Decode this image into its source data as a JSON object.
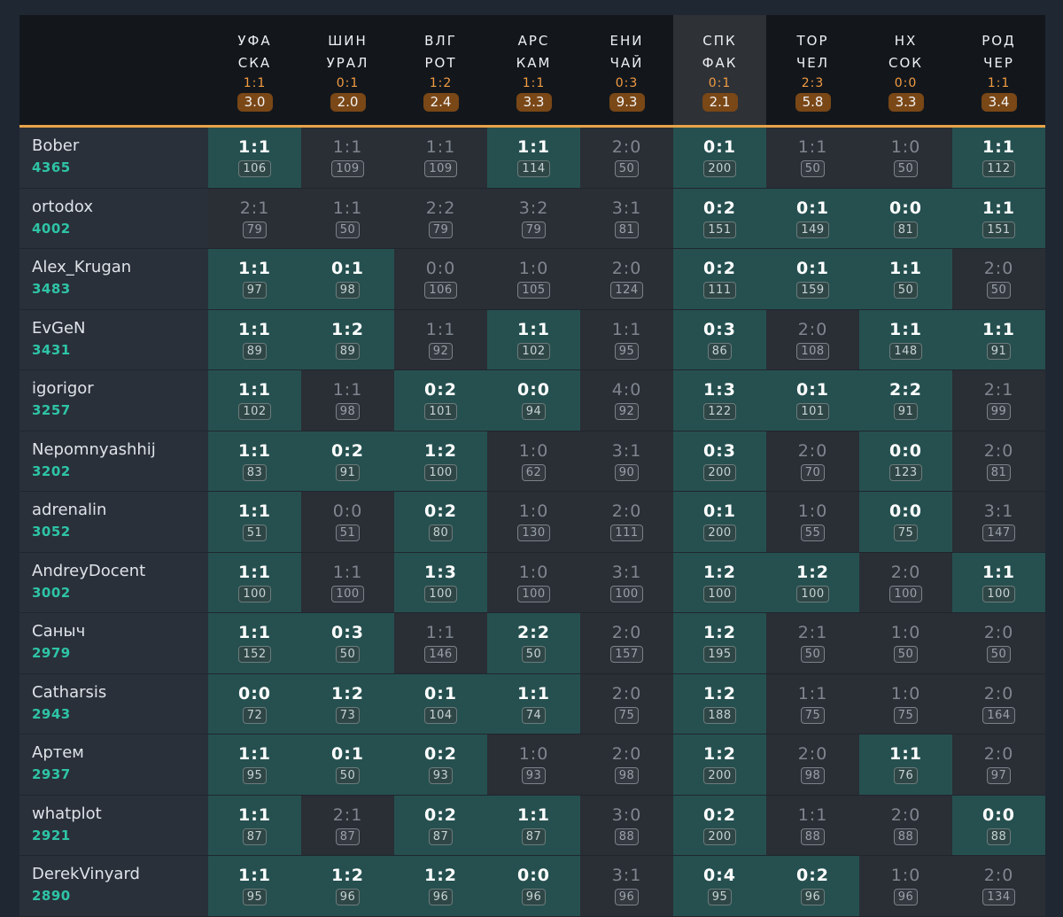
{
  "matches": [
    {
      "home": "УФА",
      "away": "СКА",
      "result": "1:1",
      "coef": "3.0",
      "active": false
    },
    {
      "home": "ШИН",
      "away": "УРАЛ",
      "result": "0:1",
      "coef": "2.0",
      "active": false
    },
    {
      "home": "ВЛГ",
      "away": "РОТ",
      "result": "1:2",
      "coef": "2.4",
      "active": false
    },
    {
      "home": "АРС",
      "away": "КАМ",
      "result": "1:1",
      "coef": "3.3",
      "active": false
    },
    {
      "home": "ЕНИ",
      "away": "ЧАЙ",
      "result": "0:3",
      "coef": "9.3",
      "active": false
    },
    {
      "home": "СПК",
      "away": "ФАК",
      "result": "0:1",
      "coef": "2.1",
      "active": true
    },
    {
      "home": "ТОР",
      "away": "ЧЕЛ",
      "result": "2:3",
      "coef": "5.8",
      "active": false
    },
    {
      "home": "НХ",
      "away": "СОК",
      "result": "0:0",
      "coef": "3.3",
      "active": false
    },
    {
      "home": "РОД",
      "away": "ЧЕР",
      "result": "1:1",
      "coef": "3.4",
      "active": false
    }
  ],
  "players": [
    {
      "name": "Bober",
      "score": "4365",
      "cells": [
        {
          "p": "1:1",
          "pts": "106",
          "hit": true
        },
        {
          "p": "1:1",
          "pts": "109",
          "hit": false
        },
        {
          "p": "1:1",
          "pts": "109",
          "hit": false
        },
        {
          "p": "1:1",
          "pts": "114",
          "hit": true
        },
        {
          "p": "2:0",
          "pts": "50",
          "hit": false
        },
        {
          "p": "0:1",
          "pts": "200",
          "hit": true
        },
        {
          "p": "1:1",
          "pts": "50",
          "hit": false
        },
        {
          "p": "1:0",
          "pts": "50",
          "hit": false
        },
        {
          "p": "1:1",
          "pts": "112",
          "hit": true
        }
      ]
    },
    {
      "name": "ortodox",
      "score": "4002",
      "cells": [
        {
          "p": "2:1",
          "pts": "79",
          "hit": false
        },
        {
          "p": "1:1",
          "pts": "50",
          "hit": false
        },
        {
          "p": "2:2",
          "pts": "79",
          "hit": false
        },
        {
          "p": "3:2",
          "pts": "79",
          "hit": false
        },
        {
          "p": "3:1",
          "pts": "81",
          "hit": false
        },
        {
          "p": "0:2",
          "pts": "151",
          "hit": true
        },
        {
          "p": "0:1",
          "pts": "149",
          "hit": true
        },
        {
          "p": "0:0",
          "pts": "81",
          "hit": true
        },
        {
          "p": "1:1",
          "pts": "151",
          "hit": true
        }
      ]
    },
    {
      "name": "Alex_Krugan",
      "score": "3483",
      "cells": [
        {
          "p": "1:1",
          "pts": "97",
          "hit": true
        },
        {
          "p": "0:1",
          "pts": "98",
          "hit": true
        },
        {
          "p": "0:0",
          "pts": "106",
          "hit": false
        },
        {
          "p": "1:0",
          "pts": "105",
          "hit": false
        },
        {
          "p": "2:0",
          "pts": "124",
          "hit": false
        },
        {
          "p": "0:2",
          "pts": "111",
          "hit": true
        },
        {
          "p": "0:1",
          "pts": "159",
          "hit": true
        },
        {
          "p": "1:1",
          "pts": "50",
          "hit": true
        },
        {
          "p": "2:0",
          "pts": "50",
          "hit": false
        }
      ]
    },
    {
      "name": "EvGeN",
      "score": "3431",
      "cells": [
        {
          "p": "1:1",
          "pts": "89",
          "hit": true
        },
        {
          "p": "1:2",
          "pts": "89",
          "hit": true
        },
        {
          "p": "1:1",
          "pts": "92",
          "hit": false
        },
        {
          "p": "1:1",
          "pts": "102",
          "hit": true
        },
        {
          "p": "1:1",
          "pts": "95",
          "hit": false
        },
        {
          "p": "0:3",
          "pts": "86",
          "hit": true
        },
        {
          "p": "2:0",
          "pts": "108",
          "hit": false
        },
        {
          "p": "1:1",
          "pts": "148",
          "hit": true
        },
        {
          "p": "1:1",
          "pts": "91",
          "hit": true
        }
      ]
    },
    {
      "name": "igorigor",
      "score": "3257",
      "cells": [
        {
          "p": "1:1",
          "pts": "102",
          "hit": true
        },
        {
          "p": "1:1",
          "pts": "98",
          "hit": false
        },
        {
          "p": "0:2",
          "pts": "101",
          "hit": true
        },
        {
          "p": "0:0",
          "pts": "94",
          "hit": true
        },
        {
          "p": "4:0",
          "pts": "92",
          "hit": false
        },
        {
          "p": "1:3",
          "pts": "122",
          "hit": true
        },
        {
          "p": "0:1",
          "pts": "101",
          "hit": true
        },
        {
          "p": "2:2",
          "pts": "91",
          "hit": true
        },
        {
          "p": "2:1",
          "pts": "99",
          "hit": false
        }
      ]
    },
    {
      "name": "Nepomnyashhij",
      "score": "3202",
      "cells": [
        {
          "p": "1:1",
          "pts": "83",
          "hit": true
        },
        {
          "p": "0:2",
          "pts": "91",
          "hit": true
        },
        {
          "p": "1:2",
          "pts": "100",
          "hit": true
        },
        {
          "p": "1:0",
          "pts": "62",
          "hit": false
        },
        {
          "p": "3:1",
          "pts": "90",
          "hit": false
        },
        {
          "p": "0:3",
          "pts": "200",
          "hit": true
        },
        {
          "p": "2:0",
          "pts": "70",
          "hit": false
        },
        {
          "p": "0:0",
          "pts": "123",
          "hit": true
        },
        {
          "p": "2:0",
          "pts": "81",
          "hit": false
        }
      ]
    },
    {
      "name": "adrenalin",
      "score": "3052",
      "cells": [
        {
          "p": "1:1",
          "pts": "51",
          "hit": true
        },
        {
          "p": "0:0",
          "pts": "51",
          "hit": false
        },
        {
          "p": "0:2",
          "pts": "80",
          "hit": true
        },
        {
          "p": "1:0",
          "pts": "130",
          "hit": false
        },
        {
          "p": "2:0",
          "pts": "111",
          "hit": false
        },
        {
          "p": "0:1",
          "pts": "200",
          "hit": true
        },
        {
          "p": "1:0",
          "pts": "55",
          "hit": false
        },
        {
          "p": "0:0",
          "pts": "75",
          "hit": true
        },
        {
          "p": "3:1",
          "pts": "147",
          "hit": false
        }
      ]
    },
    {
      "name": "AndreyDocent",
      "score": "3002",
      "cells": [
        {
          "p": "1:1",
          "pts": "100",
          "hit": true
        },
        {
          "p": "1:1",
          "pts": "100",
          "hit": false
        },
        {
          "p": "1:3",
          "pts": "100",
          "hit": true
        },
        {
          "p": "1:0",
          "pts": "100",
          "hit": false
        },
        {
          "p": "3:1",
          "pts": "100",
          "hit": false
        },
        {
          "p": "1:2",
          "pts": "100",
          "hit": true
        },
        {
          "p": "1:2",
          "pts": "100",
          "hit": true
        },
        {
          "p": "2:0",
          "pts": "100",
          "hit": false
        },
        {
          "p": "1:1",
          "pts": "100",
          "hit": true
        }
      ]
    },
    {
      "name": "Саныч",
      "score": "2979",
      "cells": [
        {
          "p": "1:1",
          "pts": "152",
          "hit": true
        },
        {
          "p": "0:3",
          "pts": "50",
          "hit": true
        },
        {
          "p": "1:1",
          "pts": "146",
          "hit": false
        },
        {
          "p": "2:2",
          "pts": "50",
          "hit": true
        },
        {
          "p": "2:0",
          "pts": "157",
          "hit": false
        },
        {
          "p": "1:2",
          "pts": "195",
          "hit": true
        },
        {
          "p": "2:1",
          "pts": "50",
          "hit": false
        },
        {
          "p": "1:0",
          "pts": "50",
          "hit": false
        },
        {
          "p": "2:0",
          "pts": "50",
          "hit": false
        }
      ]
    },
    {
      "name": "Catharsis",
      "score": "2943",
      "cells": [
        {
          "p": "0:0",
          "pts": "72",
          "hit": true
        },
        {
          "p": "1:2",
          "pts": "73",
          "hit": true
        },
        {
          "p": "0:1",
          "pts": "104",
          "hit": true
        },
        {
          "p": "1:1",
          "pts": "74",
          "hit": true
        },
        {
          "p": "2:0",
          "pts": "75",
          "hit": false
        },
        {
          "p": "1:2",
          "pts": "188",
          "hit": true
        },
        {
          "p": "1:1",
          "pts": "75",
          "hit": false
        },
        {
          "p": "1:0",
          "pts": "75",
          "hit": false
        },
        {
          "p": "2:0",
          "pts": "164",
          "hit": false
        }
      ]
    },
    {
      "name": "Артем",
      "score": "2937",
      "cells": [
        {
          "p": "1:1",
          "pts": "95",
          "hit": true
        },
        {
          "p": "0:1",
          "pts": "50",
          "hit": true
        },
        {
          "p": "0:2",
          "pts": "93",
          "hit": true
        },
        {
          "p": "1:0",
          "pts": "93",
          "hit": false
        },
        {
          "p": "2:0",
          "pts": "98",
          "hit": false
        },
        {
          "p": "1:2",
          "pts": "200",
          "hit": true
        },
        {
          "p": "2:0",
          "pts": "98",
          "hit": false
        },
        {
          "p": "1:1",
          "pts": "76",
          "hit": true
        },
        {
          "p": "2:0",
          "pts": "97",
          "hit": false
        }
      ]
    },
    {
      "name": "whatplot",
      "score": "2921",
      "cells": [
        {
          "p": "1:1",
          "pts": "87",
          "hit": true
        },
        {
          "p": "2:1",
          "pts": "87",
          "hit": false
        },
        {
          "p": "0:2",
          "pts": "87",
          "hit": true
        },
        {
          "p": "1:1",
          "pts": "87",
          "hit": true
        },
        {
          "p": "3:0",
          "pts": "88",
          "hit": false
        },
        {
          "p": "0:2",
          "pts": "200",
          "hit": true
        },
        {
          "p": "1:1",
          "pts": "88",
          "hit": false
        },
        {
          "p": "2:0",
          "pts": "88",
          "hit": false
        },
        {
          "p": "0:0",
          "pts": "88",
          "hit": true
        }
      ]
    },
    {
      "name": "DerekVinyard",
      "score": "2890",
      "cells": [
        {
          "p": "1:1",
          "pts": "95",
          "hit": true
        },
        {
          "p": "1:2",
          "pts": "96",
          "hit": true
        },
        {
          "p": "1:2",
          "pts": "96",
          "hit": true
        },
        {
          "p": "0:0",
          "pts": "96",
          "hit": true
        },
        {
          "p": "3:1",
          "pts": "96",
          "hit": false
        },
        {
          "p": "0:4",
          "pts": "95",
          "hit": true
        },
        {
          "p": "0:2",
          "pts": "96",
          "hit": true
        },
        {
          "p": "1:0",
          "pts": "96",
          "hit": false
        },
        {
          "p": "2:0",
          "pts": "134",
          "hit": false
        }
      ]
    }
  ]
}
